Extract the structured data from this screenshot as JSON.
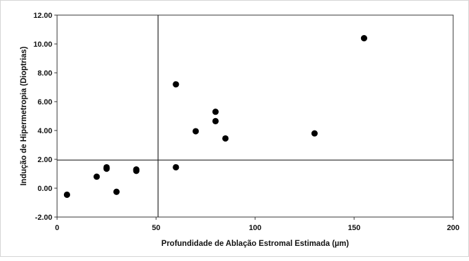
{
  "chart_data": {
    "type": "scatter",
    "title": "",
    "xlabel": "Profundidade de Ablação Estromal Estimada (µm)",
    "ylabel": "Indução de Hipermetropia (Dioptrias)",
    "xlim": [
      0,
      200
    ],
    "ylim": [
      -2,
      12
    ],
    "xticks": [
      0,
      50,
      100,
      150,
      200
    ],
    "xtick_labels": [
      "0",
      "50",
      "100",
      "150",
      "200"
    ],
    "yticks": [
      -2,
      0,
      2,
      4,
      6,
      8,
      10,
      12
    ],
    "ytick_labels": [
      "-2.00",
      "0.00",
      "2.00",
      "4.00",
      "6.00",
      "8.00",
      "10.00",
      "12.00"
    ],
    "reference_lines": {
      "x": 51,
      "y": 1.95
    },
    "grid": false,
    "legend": "none",
    "marker_color": "#000000",
    "series": [
      {
        "points": [
          {
            "x": 5,
            "y": -0.45
          },
          {
            "x": 20,
            "y": 0.8
          },
          {
            "x": 25,
            "y": 1.45
          },
          {
            "x": 25,
            "y": 1.35
          },
          {
            "x": 30,
            "y": -0.25
          },
          {
            "x": 40,
            "y": 1.3
          },
          {
            "x": 40,
            "y": 1.2
          },
          {
            "x": 60,
            "y": 7.2
          },
          {
            "x": 60,
            "y": 1.45
          },
          {
            "x": 70,
            "y": 3.95
          },
          {
            "x": 80,
            "y": 5.3
          },
          {
            "x": 80,
            "y": 4.65
          },
          {
            "x": 85,
            "y": 3.45
          },
          {
            "x": 130,
            "y": 3.8
          },
          {
            "x": 155,
            "y": 10.4
          }
        ]
      }
    ]
  }
}
